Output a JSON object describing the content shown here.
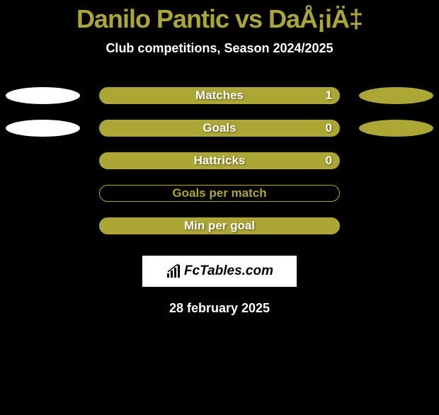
{
  "title": "Danilo Pantic vs DaÅ¡iÄ‡",
  "title_color": "#aca634",
  "subtitle": "Club competitions, Season 2024/2025",
  "stats": [
    {
      "label": "Matches",
      "value_right": "1",
      "bar_fill": "#aca634",
      "bar_border": "#aca634",
      "label_color": "#ffffff",
      "ellipse_left": true,
      "ellipse_left_color": "#ffffff",
      "ellipse_right": true,
      "ellipse_right_color": "#aca634"
    },
    {
      "label": "Goals",
      "value_right": "0",
      "bar_fill": "#aca634",
      "bar_border": "#aca634",
      "label_color": "#ffffff",
      "ellipse_left": true,
      "ellipse_left_color": "#ffffff",
      "ellipse_right": true,
      "ellipse_right_color": "#aca634"
    },
    {
      "label": "Hattricks",
      "value_right": "0",
      "bar_fill": "#aca634",
      "bar_border": "#aca634",
      "label_color": "#ffffff",
      "ellipse_left": false,
      "ellipse_right": false
    },
    {
      "label": "Goals per match",
      "value_right": "",
      "bar_fill": "transparent",
      "bar_border": "#aca634",
      "label_color": "#aca634",
      "ellipse_left": false,
      "ellipse_right": false
    },
    {
      "label": "Min per goal",
      "value_right": "",
      "bar_fill": "#aca634",
      "bar_border": "#aca634",
      "label_color": "#ffffff",
      "ellipse_left": false,
      "ellipse_right": false
    }
  ],
  "logo_text": "FcTables.com",
  "date": "28 february 2025",
  "background_color": "#000000"
}
